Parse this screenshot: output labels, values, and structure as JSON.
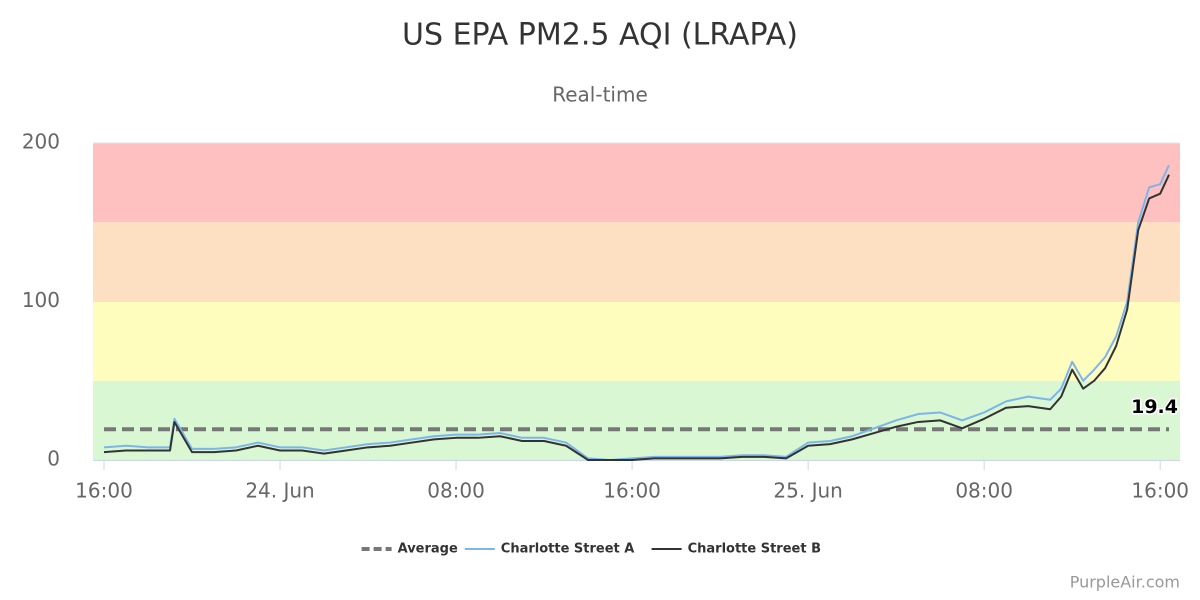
{
  "chart_data": {
    "type": "line",
    "title": "US EPA PM2.5 AQI (LRAPA)",
    "subtitle": "Real-time",
    "credits": "PurpleAir.com",
    "x": [
      0,
      1,
      2,
      3,
      3.2,
      4,
      5,
      6,
      7,
      8,
      9,
      10,
      11,
      12,
      13,
      14,
      15,
      16,
      17,
      18,
      19,
      20,
      21,
      22,
      23,
      24,
      25,
      26,
      27,
      28,
      29,
      30,
      31,
      32,
      33,
      34,
      35,
      36,
      37,
      38,
      39,
      40,
      41,
      42,
      43,
      43.5,
      44,
      44.5,
      45,
      45.5,
      46,
      46.5,
      47,
      47.5,
      48,
      48.4
    ],
    "xlim": [
      -0.5,
      48.9
    ],
    "xticks": [
      {
        "value": 0,
        "label": "16:00"
      },
      {
        "value": 8,
        "label": "24. Jun"
      },
      {
        "value": 16,
        "label": "08:00"
      },
      {
        "value": 24,
        "label": "16:00"
      },
      {
        "value": 32,
        "label": "25. Jun"
      },
      {
        "value": 40,
        "label": "08:00"
      },
      {
        "value": 48,
        "label": "16:00"
      }
    ],
    "ylim": [
      0,
      200
    ],
    "yticks": [
      0,
      100,
      200
    ],
    "bands": [
      {
        "from": 0,
        "to": 50,
        "color": "#d9f7d3"
      },
      {
        "from": 50,
        "to": 100,
        "color": "#fffdbe"
      },
      {
        "from": 100,
        "to": 150,
        "color": "#fde0c2"
      },
      {
        "from": 150,
        "to": 200,
        "color": "#ffc0c0"
      }
    ],
    "average": {
      "name": "Average",
      "value": 19.4,
      "color": "#777777"
    },
    "series": [
      {
        "name": "Charlotte Street A",
        "color": "#7cb5ec",
        "values": [
          8,
          9,
          8,
          8,
          26,
          7,
          7,
          8,
          11,
          8,
          8,
          6,
          8,
          10,
          11,
          13,
          15,
          16,
          16,
          17,
          14,
          14,
          11,
          1,
          0,
          1,
          2,
          2,
          2,
          2,
          3,
          3,
          2,
          11,
          12,
          15,
          20,
          25,
          29,
          30,
          25,
          30,
          37,
          40,
          38,
          45,
          62,
          50,
          57,
          65,
          78,
          100,
          150,
          172,
          174,
          186
        ]
      },
      {
        "name": "Charlotte Street B",
        "color": "#333333",
        "values": [
          5,
          6,
          6,
          6,
          24,
          5,
          5,
          6,
          9,
          6,
          6,
          4,
          6,
          8,
          9,
          11,
          13,
          14,
          14,
          15,
          12,
          12,
          9,
          0,
          0,
          0,
          1,
          1,
          1,
          1,
          2,
          2,
          1,
          9,
          10,
          13,
          17,
          21,
          24,
          25,
          20,
          26,
          33,
          34,
          32,
          40,
          57,
          45,
          50,
          58,
          72,
          95,
          145,
          165,
          168,
          180
        ]
      }
    ]
  }
}
